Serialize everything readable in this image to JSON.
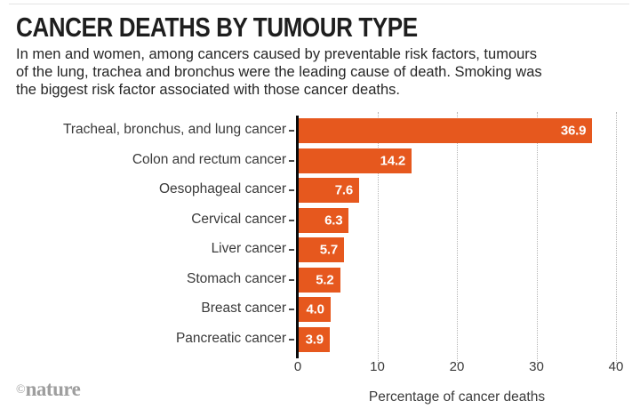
{
  "header": {
    "title": "CANCER DEATHS BY TUMOUR TYPE",
    "subtitle_lines": [
      "In men and women, among cancers caused by preventable risk factors, tumours",
      "of the lung, trachea and bronchus were the leading cause of death. Smoking was",
      "the biggest risk factor associated with those cancer deaths."
    ]
  },
  "chart_data": {
    "type": "bar",
    "orientation": "horizontal",
    "categories": [
      "Tracheal, bronchus, and lung cancer",
      "Colon and rectum cancer",
      "Oesophageal cancer",
      "Cervical cancer",
      "Liver cancer",
      "Stomach cancer",
      "Breast cancer",
      "Pancreatic cancer"
    ],
    "values": [
      36.9,
      14.2,
      7.6,
      6.3,
      5.7,
      5.2,
      4.0,
      3.9
    ],
    "value_labels": [
      "36.9",
      "14.2",
      "7.6",
      "6.3",
      "5.7",
      "5.2",
      "4.0",
      "3.9"
    ],
    "xlabel": "Percentage of cancer deaths",
    "xticks": [
      0,
      10,
      20,
      30,
      40
    ],
    "xlim": [
      0,
      40
    ],
    "grid": "dotted-vertical",
    "legend": "none",
    "bar_color": "#e6581e",
    "value_label_color": "#ffffff",
    "axis_color": "#0a0a0a",
    "gridline_color": "#b5b5b5"
  },
  "footer": {
    "credit_symbol": "©",
    "credit_name": "nature"
  }
}
